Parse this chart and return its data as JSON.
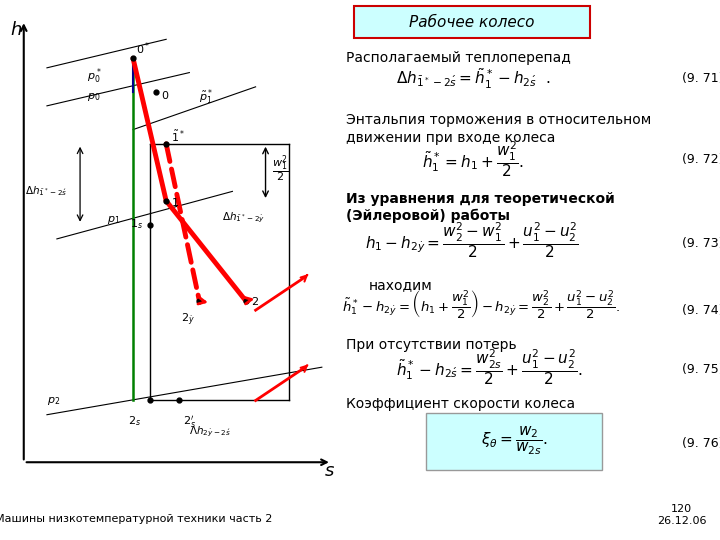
{
  "bg_color": "#ffffff",
  "title_box_text": "Рабочее колесо",
  "title_box_color": "#ccffff",
  "title_box_border": "#cc0000",
  "eq_76_box_color": "#ccffff",
  "footer_left": "Машины низкотемпературной техники часть 2",
  "footer_page": "120",
  "footer_date": "26.12.06"
}
